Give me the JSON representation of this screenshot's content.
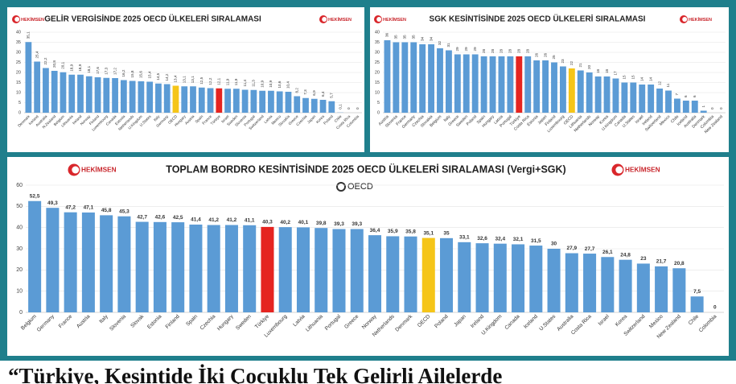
{
  "logo": "HEKİMSEN",
  "oecd_logo": "OECD",
  "headline": "“Türkiye, Kesintide İki Çocuklu Tek Gelirli Ailelerde",
  "chart_data": [
    {
      "type": "bar",
      "title": "GELİR VERGİSİNDE 2025 OECD ÜLKELERİ SIRALAMASI",
      "color": "#5b9bd5",
      "highlights": [
        {
          "category": "OECD",
          "color": "#f5c518"
        },
        {
          "category": "Türkiye",
          "color": "#e52420"
        }
      ],
      "categories": [
        "Denmark",
        "Iceland",
        "Australia",
        "N.Zealand",
        "Belgium",
        "Lithuania",
        "Ireland",
        "Norway",
        "Finland",
        "Luxembourg",
        "Canada",
        "Estonia",
        "Netherlands",
        "U.Kingdom",
        "U.States",
        "Italy",
        "Germany",
        "OECD",
        "Hungary",
        "Austria",
        "Spain",
        "France",
        "Türkiye",
        "Israel",
        "Sweden",
        "Slovenia",
        "Portugal",
        "Switzerland",
        "Latvia",
        "Mexico",
        "Slovakia",
        "Greece",
        "Czechia",
        "Japan",
        "Korea",
        "Poland",
        "Chile",
        "Costa Rica",
        "Colombia"
      ],
      "values": [
        35.1,
        25.4,
        22.2,
        20.8,
        20.1,
        18.9,
        18.9,
        18.1,
        17.6,
        17.3,
        17.2,
        16.2,
        15.8,
        15.6,
        15.4,
        14.5,
        14.2,
        13.4,
        13.1,
        13.1,
        12.5,
        12.2,
        12.1,
        11.9,
        11.9,
        11.4,
        11.3,
        10.9,
        10.9,
        10.6,
        10.4,
        8.2,
        7.3,
        6.9,
        6.4,
        5.7,
        0.1,
        0,
        0
      ],
      "value_labels": [
        "35,1",
        "25,4",
        "22,2",
        "20,8",
        "20,1",
        "18,9",
        "18,9",
        "18,1",
        "17,6",
        "17,3",
        "17,2",
        "16,2",
        "15,8",
        "15,6",
        "15,4",
        "14,5",
        "14,2",
        "13,4",
        "13,1",
        "13,1",
        "12,5",
        "12,2",
        "12,1",
        "11,9",
        "11,9",
        "11,4",
        "11,3",
        "10,9",
        "10,9",
        "10,6",
        "10,4",
        "8,2",
        "7,3",
        "6,9",
        "6,4",
        "5,7",
        "0,1",
        "0",
        "0"
      ],
      "ylim": [
        0,
        40
      ],
      "yticks": [
        0,
        5,
        10,
        15,
        20,
        25,
        30,
        35,
        40
      ],
      "grid": true
    },
    {
      "type": "bar",
      "title": "SGK KESİNTİSİNDE 2025 OECD ÜLKELERİ SIRALAMASI",
      "color": "#5b9bd5",
      "highlights": [
        {
          "category": "Türkiye",
          "color": "#e52420"
        },
        {
          "category": "OECD",
          "color": "#f5c518"
        }
      ],
      "categories": [
        "Austria",
        "Slovenia",
        "France",
        "Germany",
        "Czechia",
        "Slovakia",
        "Belgium",
        "Italy",
        "Greece",
        "Sweden",
        "Poland",
        "Spain",
        "Hungary",
        "Latvia",
        "Portugal",
        "Türkiye",
        "Costa Rica",
        "Estonia",
        "Japan",
        "Finland",
        "Luxembourg",
        "OECD",
        "Lithuania",
        "Netherlands",
        "Norway",
        "Korea",
        "U.Kingdom",
        "Canada",
        "U.States",
        "Israel",
        "Ireland",
        "Switzerland",
        "Mexico",
        "Chile",
        "Iceland",
        "Australia",
        "Denmark",
        "Colombia",
        "New Zealand"
      ],
      "values": [
        36,
        35,
        35,
        35,
        34,
        34,
        32,
        31,
        29,
        29,
        29,
        28,
        28,
        28,
        28,
        28,
        28,
        26,
        26,
        25,
        23,
        22,
        21,
        20,
        18,
        18,
        17,
        15,
        15,
        14,
        14,
        12,
        11,
        7,
        6,
        6,
        1,
        0,
        0
      ],
      "ylim": [
        0,
        40
      ],
      "yticks": [
        0,
        5,
        10,
        15,
        20,
        25,
        30,
        35,
        40
      ],
      "grid": true
    },
    {
      "type": "bar",
      "title": "TOPLAM BORDRO KESİNTİSİNDE 2025 OECD ÜLKELERİ SIRALAMASI (Vergi+SGK)",
      "color": "#5b9bd5",
      "highlights": [
        {
          "category": "Türkiye",
          "color": "#e52420"
        },
        {
          "category": "OECD",
          "color": "#f5c518"
        }
      ],
      "categories": [
        "Belgium",
        "Germany",
        "France",
        "Austria",
        "Italy",
        "Slovenia",
        "Slovak",
        "Estonia",
        "Finland",
        "Spain",
        "Czechia",
        "Hungary",
        "Sweden",
        "Türkiye",
        "Luxembourg",
        "Latvia",
        "Lithuania",
        "Portugal",
        "Greece",
        "Norway",
        "Netherlands",
        "Denmark",
        "OECD",
        "Poland",
        "Japan",
        "Ireland",
        "U.Kingdom",
        "Canada",
        "Iceland",
        "U.States",
        "Australia",
        "Costa Rica",
        "Israel",
        "Korea",
        "Switzerland",
        "Mexico",
        "New Zealand",
        "Chile",
        "Colombia"
      ],
      "values": [
        52.5,
        49.3,
        47.2,
        47.1,
        45.8,
        45.3,
        42.7,
        42.6,
        42.5,
        41.4,
        41.2,
        41.2,
        41.1,
        40.3,
        40.2,
        40.1,
        39.8,
        39.3,
        39.3,
        36.4,
        35.9,
        35.8,
        35.1,
        35,
        33.1,
        32.6,
        32.4,
        32.1,
        31.5,
        30,
        27.9,
        27.7,
        26.1,
        24.8,
        23,
        21.7,
        20.8,
        7.5,
        0
      ],
      "value_labels": [
        "52,5",
        "49,3",
        "47,2",
        "47,1",
        "45,8",
        "45,3",
        "42,7",
        "42,6",
        "42,5",
        "41,4",
        "41,2",
        "41,2",
        "41,1",
        "40,3",
        "40,2",
        "40,1",
        "39,8",
        "39,3",
        "39,3",
        "36,4",
        "35,9",
        "35,8",
        "35,1",
        "35",
        "33,1",
        "32,6",
        "32,4",
        "32,1",
        "31,5",
        "30",
        "27,9",
        "27,7",
        "26,1",
        "24,8",
        "23",
        "21,7",
        "20,8",
        "7,5",
        "0"
      ],
      "ylim": [
        0,
        60
      ],
      "yticks": [
        0,
        10,
        20,
        30,
        40,
        50,
        60
      ],
      "grid": true
    }
  ]
}
